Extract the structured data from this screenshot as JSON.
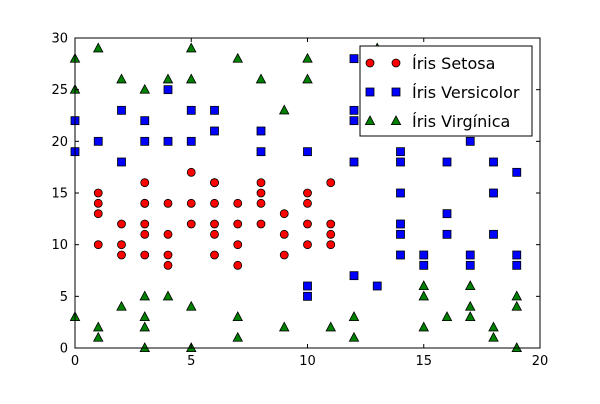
{
  "chart_data": {
    "type": "scatter",
    "title": "",
    "xlabel": "",
    "ylabel": "",
    "xlim": [
      0,
      20
    ],
    "ylim": [
      0,
      30
    ],
    "x_ticks": [
      0,
      5,
      10,
      15,
      20
    ],
    "y_ticks": [
      0,
      5,
      10,
      15,
      20,
      25,
      30
    ],
    "grid": false,
    "legend_position": "top-right",
    "series": [
      {
        "name": "Íris Setosa",
        "marker": "circle",
        "color": "#ff0000",
        "points": [
          [
            1,
            15
          ],
          [
            1,
            14
          ],
          [
            1,
            13
          ],
          [
            1,
            10
          ],
          [
            2,
            12
          ],
          [
            2,
            10
          ],
          [
            2,
            9
          ],
          [
            3,
            16
          ],
          [
            3,
            14
          ],
          [
            3,
            14
          ],
          [
            3,
            12
          ],
          [
            3,
            11
          ],
          [
            3,
            9
          ],
          [
            4,
            14
          ],
          [
            4,
            11
          ],
          [
            4,
            9
          ],
          [
            4,
            8
          ],
          [
            5,
            17
          ],
          [
            5,
            14
          ],
          [
            5,
            12
          ],
          [
            6,
            16
          ],
          [
            6,
            16
          ],
          [
            6,
            14
          ],
          [
            6,
            12
          ],
          [
            6,
            11
          ],
          [
            6,
            9
          ],
          [
            7,
            14
          ],
          [
            7,
            12
          ],
          [
            7,
            10
          ],
          [
            7,
            8
          ],
          [
            8,
            16
          ],
          [
            8,
            15
          ],
          [
            8,
            14
          ],
          [
            8,
            12
          ],
          [
            9,
            13
          ],
          [
            9,
            11
          ],
          [
            9,
            9
          ],
          [
            10,
            15
          ],
          [
            10,
            14
          ],
          [
            10,
            12
          ],
          [
            10,
            10
          ],
          [
            11,
            16
          ],
          [
            11,
            12
          ],
          [
            11,
            11
          ],
          [
            11,
            10
          ]
        ]
      },
      {
        "name": "Íris Versicolor",
        "marker": "square",
        "color": "#0000ff",
        "points": [
          [
            0,
            22
          ],
          [
            0,
            19
          ],
          [
            1,
            20
          ],
          [
            2,
            23
          ],
          [
            2,
            18
          ],
          [
            3,
            22
          ],
          [
            3,
            20
          ],
          [
            4,
            25
          ],
          [
            4,
            20
          ],
          [
            5,
            23
          ],
          [
            5,
            20
          ],
          [
            6,
            23
          ],
          [
            6,
            21
          ],
          [
            8,
            21
          ],
          [
            8,
            19
          ],
          [
            10,
            19
          ],
          [
            10,
            6
          ],
          [
            10,
            5
          ],
          [
            12,
            28
          ],
          [
            12,
            23
          ],
          [
            12,
            22
          ],
          [
            12,
            18
          ],
          [
            12,
            7
          ],
          [
            13,
            6
          ],
          [
            14,
            21
          ],
          [
            14,
            19
          ],
          [
            14,
            18
          ],
          [
            14,
            15
          ],
          [
            14,
            12
          ],
          [
            14,
            11
          ],
          [
            14,
            9
          ],
          [
            15,
            9
          ],
          [
            15,
            8
          ],
          [
            16,
            18
          ],
          [
            16,
            13
          ],
          [
            16,
            11
          ],
          [
            17,
            20
          ],
          [
            17,
            9
          ],
          [
            17,
            8
          ],
          [
            18,
            18
          ],
          [
            18,
            15
          ],
          [
            18,
            11
          ],
          [
            19,
            17
          ],
          [
            19,
            9
          ],
          [
            19,
            8
          ]
        ]
      },
      {
        "name": "Íris Virgínica",
        "marker": "triangle",
        "color": "#008000",
        "points": [
          [
            0,
            28
          ],
          [
            0,
            25
          ],
          [
            0,
            3
          ],
          [
            1,
            29
          ],
          [
            1,
            2
          ],
          [
            1,
            1
          ],
          [
            2,
            26
          ],
          [
            2,
            4
          ],
          [
            3,
            25
          ],
          [
            3,
            5
          ],
          [
            3,
            3
          ],
          [
            3,
            2
          ],
          [
            3,
            0
          ],
          [
            4,
            26
          ],
          [
            4,
            5
          ],
          [
            5,
            29
          ],
          [
            5,
            26
          ],
          [
            5,
            4
          ],
          [
            5,
            0
          ],
          [
            7,
            28
          ],
          [
            7,
            3
          ],
          [
            7,
            1
          ],
          [
            8,
            26
          ],
          [
            9,
            23
          ],
          [
            9,
            2
          ],
          [
            10,
            28
          ],
          [
            10,
            26
          ],
          [
            11,
            2
          ],
          [
            12,
            3
          ],
          [
            12,
            1
          ],
          [
            13,
            29
          ],
          [
            15,
            6
          ],
          [
            15,
            5
          ],
          [
            15,
            2
          ],
          [
            16,
            3
          ],
          [
            17,
            6
          ],
          [
            17,
            4
          ],
          [
            17,
            3
          ],
          [
            18,
            2
          ],
          [
            18,
            1
          ],
          [
            19,
            5
          ],
          [
            19,
            4
          ],
          [
            19,
            0
          ]
        ]
      }
    ]
  }
}
